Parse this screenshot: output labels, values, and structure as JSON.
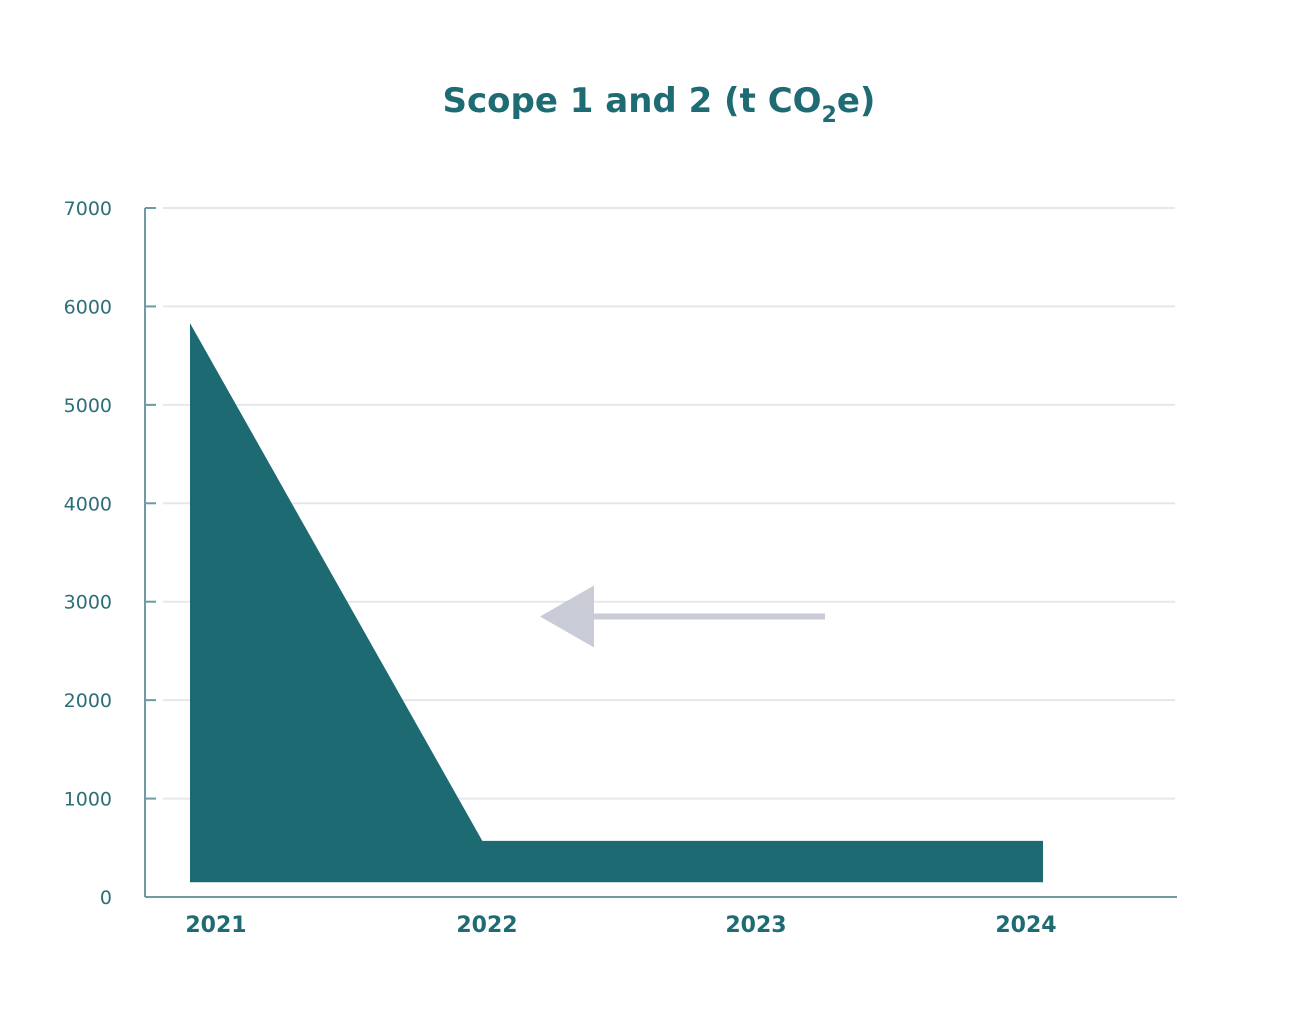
{
  "chart_data": {
    "type": "area",
    "title": {
      "main": "Scope 1 and 2 (t CO",
      "subscript": "2",
      "suffix": "e)"
    },
    "categories": [
      "2021",
      "2022",
      "2023",
      "2024"
    ],
    "series": [
      {
        "values": [
          5830,
          570,
          570,
          570
        ],
        "baseline": 150
      }
    ],
    "yticks": [
      "0",
      "1000",
      "2000",
      "3000",
      "4000",
      "5000",
      "6000",
      "7000"
    ],
    "ylim": [
      0,
      7000
    ],
    "grid": true,
    "legend": "none",
    "annotation": {
      "type": "arrow",
      "direction": "left",
      "at_value": 2850
    },
    "colors": {
      "title": "#1e6b74",
      "area": "#1d6a73",
      "axis": "#6e9aa0",
      "tick_text": "#2d6f78",
      "grid": "#e4e8ea",
      "arrow": "#c9cbd6"
    }
  }
}
